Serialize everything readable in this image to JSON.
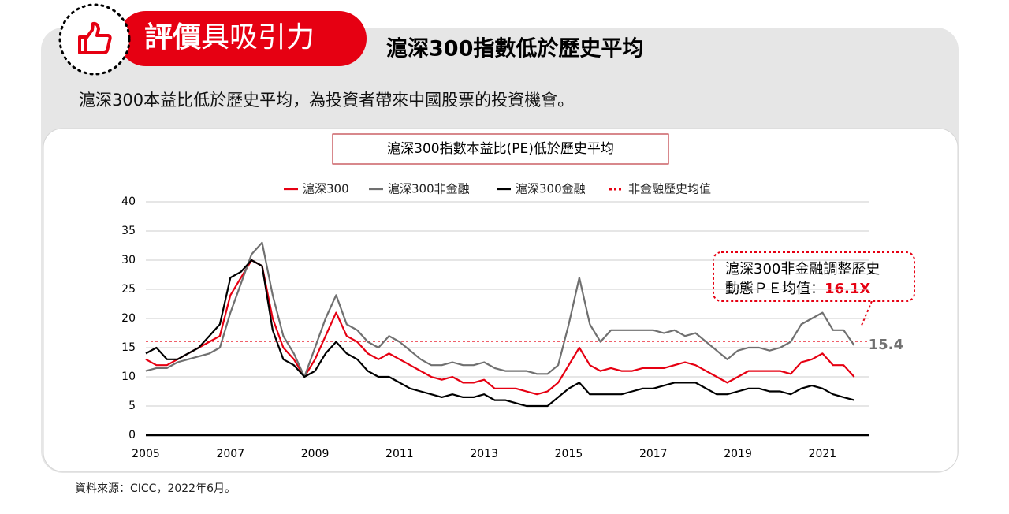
{
  "header": {
    "tag_bold": "評價",
    "tag_light": "具吸引力",
    "title": "滬深300指數低於歷史平均",
    "subtitle": "滬深300本益比低於歷史平均，為投資者帶來中國股票的投資機會。"
  },
  "chart_data": {
    "type": "line",
    "title": "滬深300指數本益比(PE)低於歷史平均",
    "x": [
      2005,
      2005.25,
      2005.5,
      2005.75,
      2006,
      2006.25,
      2006.5,
      2006.75,
      2007,
      2007.25,
      2007.5,
      2007.75,
      2008,
      2008.25,
      2008.5,
      2008.75,
      2009,
      2009.25,
      2009.5,
      2009.75,
      2010,
      2010.25,
      2010.5,
      2010.75,
      2011,
      2011.25,
      2011.5,
      2011.75,
      2012,
      2012.25,
      2012.5,
      2012.75,
      2013,
      2013.25,
      2013.5,
      2013.75,
      2014,
      2014.25,
      2014.5,
      2014.75,
      2015,
      2015.25,
      2015.5,
      2015.75,
      2016,
      2016.25,
      2016.5,
      2016.75,
      2017,
      2017.25,
      2017.5,
      2017.75,
      2018,
      2018.25,
      2018.5,
      2018.75,
      2019,
      2019.25,
      2019.5,
      2019.75,
      2020,
      2020.25,
      2020.5,
      2020.75,
      2021,
      2021.25,
      2021.5,
      2021.75
    ],
    "series": [
      {
        "name": "滬深300",
        "color": "#e60012",
        "values": [
          13,
          12,
          12,
          13,
          14,
          15,
          16,
          17,
          24,
          27,
          30,
          29,
          20,
          15,
          13,
          10,
          13,
          17,
          21,
          17,
          16,
          14,
          13,
          14,
          13,
          12,
          11,
          10,
          9.5,
          10,
          9,
          9,
          9.5,
          8,
          8,
          8,
          7.5,
          7,
          7.5,
          9,
          12,
          15,
          12,
          11,
          11.5,
          11,
          11,
          11.5,
          11.5,
          11.5,
          12,
          12.5,
          12,
          11,
          10,
          9,
          10,
          11,
          11,
          11,
          11,
          10.5,
          12.5,
          13,
          14,
          12,
          12,
          10
        ]
      },
      {
        "name": "滬深300非金融",
        "color": "#707070",
        "values": [
          11,
          11.5,
          11.5,
          12.5,
          13,
          13.5,
          14,
          15,
          21,
          26,
          31,
          33,
          24,
          17,
          14,
          10,
          15,
          20,
          24,
          19,
          18,
          16,
          15,
          17,
          16,
          14.5,
          13,
          12,
          12,
          12.5,
          12,
          12,
          12.5,
          11.5,
          11,
          11,
          11,
          10.5,
          10.5,
          12,
          19,
          27,
          19,
          16,
          18,
          18,
          18,
          18,
          18,
          17.5,
          18,
          17,
          17.5,
          16,
          14.5,
          13,
          14.5,
          15,
          15,
          14.5,
          15,
          16,
          19,
          20,
          21,
          18,
          18,
          15.4
        ]
      },
      {
        "name": "滬深300金融",
        "color": "#000000",
        "values": [
          14,
          15,
          13,
          13,
          14,
          15,
          17,
          19,
          27,
          28,
          30,
          29,
          18,
          13,
          12,
          10,
          11,
          14,
          16,
          14,
          13,
          11,
          10,
          10,
          9,
          8,
          7.5,
          7,
          6.5,
          7,
          6.5,
          6.5,
          7,
          6,
          6,
          5.5,
          5,
          5,
          5,
          6.5,
          8,
          9,
          7,
          7,
          7,
          7,
          7.5,
          8,
          8,
          8.5,
          9,
          9,
          9,
          8,
          7,
          7,
          7.5,
          8,
          8,
          7.5,
          7.5,
          7,
          8,
          8.5,
          8,
          7,
          6.5,
          6
        ]
      }
    ],
    "reference_line": {
      "name": "非金融歷史均值",
      "value": 16.1,
      "label": "16.1X",
      "color": "#e60012"
    },
    "annotation": {
      "line1": "滬深300非金融調整歷史",
      "line2": "動態ＰＥ均值："
    },
    "xlim": [
      2005,
      2022
    ],
    "xticks": [
      2005,
      2007,
      2009,
      2011,
      2013,
      2015,
      2017,
      2019,
      2021
    ],
    "ylim": [
      0,
      40
    ],
    "yticks": [
      0,
      5,
      10,
      15,
      20,
      25,
      30,
      35,
      40
    ],
    "grid": true
  },
  "source": "資料來源：CICC，2022年6月。"
}
